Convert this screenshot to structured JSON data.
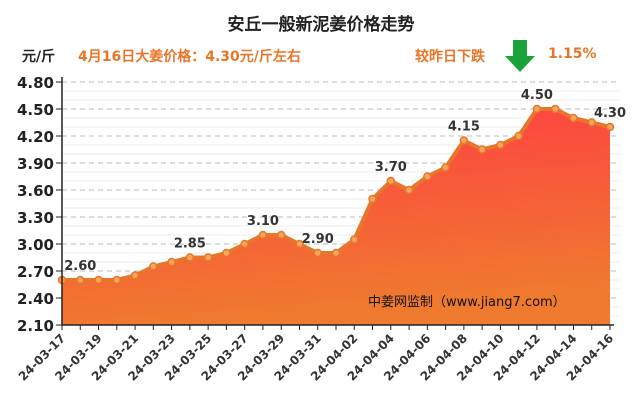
{
  "header": {
    "title": "安丘一般新泥姜价格走势",
    "unit": "元/斤",
    "price_info": "4月16日大姜价格：4.30元/斤左右",
    "compare_label": "较昨日下跌",
    "compare_percent": "1.15%",
    "trend_icon": "arrow-down-icon",
    "trend_color": "#1aa33a"
  },
  "source": "中姜网监制（www.jiang7.com）",
  "chart_data": {
    "type": "area",
    "title": "安丘一般新泥姜价格走势",
    "ylabel": "元/斤",
    "ylim": [
      2.1,
      4.8
    ],
    "yticks": [
      "2.10",
      "2.40",
      "2.70",
      "3.00",
      "3.30",
      "3.60",
      "3.90",
      "4.20",
      "4.50",
      "4.80"
    ],
    "x": [
      "24-03-17",
      "24-03-18",
      "24-03-19",
      "24-03-20",
      "24-03-21",
      "24-03-22",
      "24-03-23",
      "24-03-24",
      "24-03-25",
      "24-03-26",
      "24-03-27",
      "24-03-28",
      "24-03-29",
      "24-03-30",
      "24-03-31",
      "24-04-01",
      "24-04-02",
      "24-04-03",
      "24-04-04",
      "24-04-05",
      "24-04-06",
      "24-04-07",
      "24-04-08",
      "24-04-09",
      "24-04-10",
      "24-04-11",
      "24-04-12",
      "24-04-13",
      "24-04-14",
      "24-04-15",
      "24-04-16"
    ],
    "xticks": [
      "24-03-17",
      "24-03-19",
      "24-03-21",
      "24-03-23",
      "24-03-25",
      "24-03-27",
      "24-03-29",
      "24-03-31",
      "24-04-02",
      "24-04-04",
      "24-04-06",
      "24-04-08",
      "24-04-10",
      "24-04-12",
      "24-04-14",
      "24-04-16"
    ],
    "values": [
      2.6,
      2.6,
      2.6,
      2.6,
      2.65,
      2.75,
      2.8,
      2.85,
      2.85,
      2.9,
      3.0,
      3.1,
      3.1,
      3.0,
      2.9,
      2.9,
      3.05,
      3.5,
      3.7,
      3.6,
      3.75,
      3.85,
      4.15,
      4.05,
      4.1,
      4.2,
      4.5,
      4.5,
      4.4,
      4.35,
      4.3
    ],
    "data_labels": [
      {
        "index": 1,
        "text": "2.60"
      },
      {
        "index": 7,
        "text": "2.85"
      },
      {
        "index": 11,
        "text": "3.10"
      },
      {
        "index": 14,
        "text": "2.90"
      },
      {
        "index": 18,
        "text": "3.70"
      },
      {
        "index": 22,
        "text": "4.15"
      },
      {
        "index": 26,
        "text": "4.50"
      },
      {
        "index": 30,
        "text": "4.30"
      }
    ],
    "grid": true,
    "colors": {
      "line": "#e8762a",
      "fill_top": "#ff3d45",
      "fill_bottom": "#ef7a2e"
    }
  }
}
